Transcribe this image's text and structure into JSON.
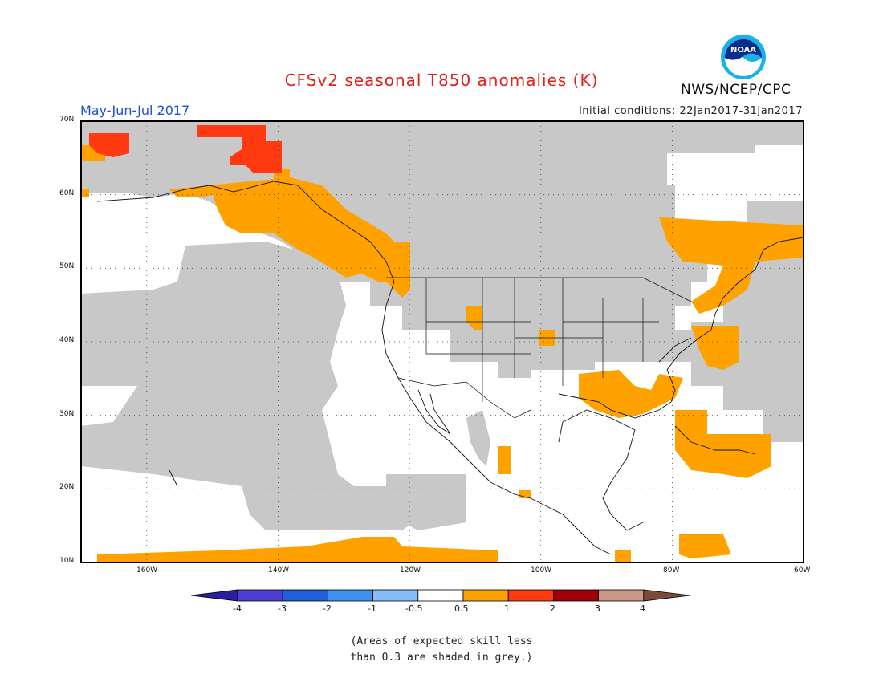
{
  "header": {
    "title": "CFSv2 seasonal T850 anomalies (K)",
    "season": "May-Jun-Jul 2017",
    "initial_conditions": "Initial conditions: 22Jan2017-31Jan2017",
    "agency": "NWS/NCEP/CPC",
    "logo_text": "NOAA"
  },
  "map": {
    "lat_labels": [
      "70N",
      "60N",
      "50N",
      "40N",
      "30N",
      "20N",
      "10N"
    ],
    "lon_labels": [
      "160W",
      "140W",
      "120W",
      "100W",
      "80W",
      "60W"
    ]
  },
  "colorbar": {
    "labels": [
      "-4",
      "-3",
      "-2",
      "-1",
      "-0.5",
      "0.5",
      "1",
      "2",
      "3",
      "4"
    ],
    "colors": [
      "#2a1fa0",
      "#4a3fd0",
      "#1f62d8",
      "#3f92ef",
      "#86bdf6",
      "#ffffff",
      "#ffa200",
      "#ff3a10",
      "#a00008",
      "#cc9988",
      "#7a4a3a"
    ]
  },
  "note": {
    "line1": "(Areas of expected skill less",
    "line2": "than 0.3 are shaded in grey.)"
  }
}
